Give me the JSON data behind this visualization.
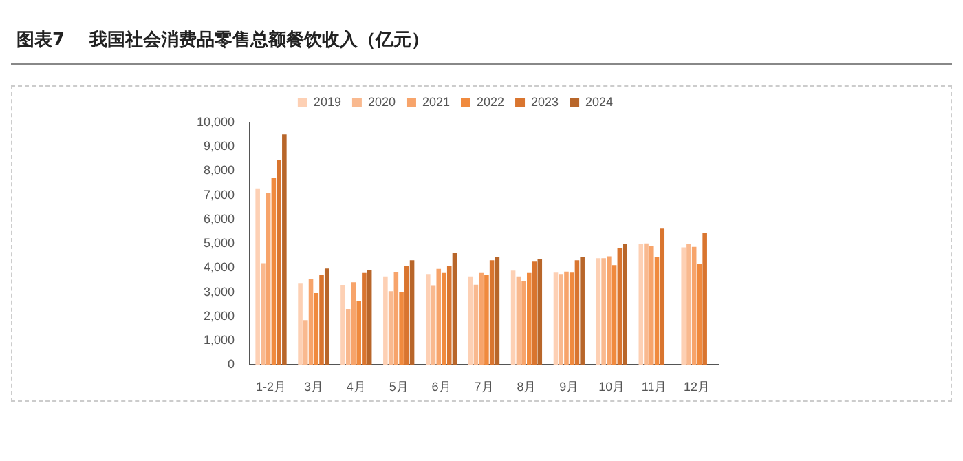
{
  "chart_data": {
    "type": "bar",
    "title": "图表7    我国社会消费品零售总额餐饮收入（亿元）",
    "categories": [
      "1-2月",
      "3月",
      "4月",
      "5月",
      "6月",
      "7月",
      "8月",
      "9月",
      "10月",
      "11月",
      "12月"
    ],
    "series": [
      {
        "name": "2019",
        "color": "#fdd0b4",
        "values": [
          7280,
          3350,
          3300,
          3650,
          3750,
          3650,
          3890,
          3810,
          4400,
          4990,
          4850
        ]
      },
      {
        "name": "2020",
        "color": "#f9b98f",
        "values": [
          4200,
          1850,
          2310,
          3040,
          3290,
          3310,
          3650,
          3750,
          4400,
          5010,
          4990
        ]
      },
      {
        "name": "2021",
        "color": "#f7a46b",
        "values": [
          7100,
          3530,
          3410,
          3830,
          3960,
          3790,
          3470,
          3850,
          4480,
          4890,
          4870
        ]
      },
      {
        "name": "2022",
        "color": "#f08a3e",
        "values": [
          7730,
          2960,
          2640,
          3020,
          3790,
          3710,
          3790,
          3810,
          4120,
          4460,
          4160
        ]
      },
      {
        "name": "2023",
        "color": "#d9752f",
        "values": [
          8460,
          3710,
          3790,
          4080,
          4100,
          4320,
          4260,
          4320,
          4830,
          5620,
          5440
        ]
      },
      {
        "name": "2024",
        "color": "#b8662a",
        "values": [
          9510,
          3980,
          3930,
          4320,
          4640,
          4440,
          4380,
          4440,
          4990,
          null,
          null
        ]
      }
    ],
    "ylim": [
      0,
      10000
    ],
    "yticks": [
      0,
      {
        "value": 1000,
        "label": "1,000"
      },
      {
        "value": 2000,
        "label": "2,000"
      },
      {
        "value": 3000,
        "label": "3,000"
      },
      {
        "value": 4000,
        "label": "4,000"
      },
      {
        "value": 5000,
        "label": "5,000"
      },
      {
        "value": 6000,
        "label": "6,000"
      },
      {
        "value": 7000,
        "label": "7,000"
      },
      {
        "value": 8000,
        "label": "8,000"
      },
      {
        "value": 9000,
        "label": "9,000"
      },
      {
        "value": 10000,
        "label": "10,000"
      }
    ],
    "grid": false,
    "legend": "top"
  }
}
